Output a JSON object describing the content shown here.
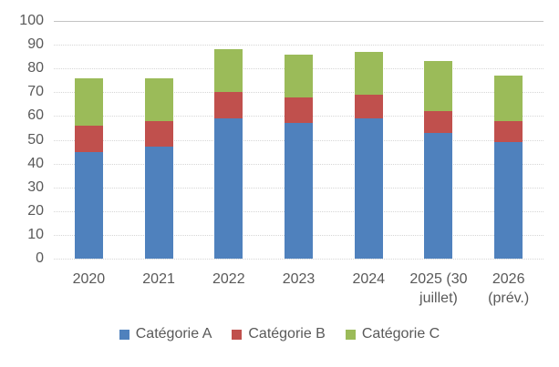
{
  "chart_data": {
    "type": "bar",
    "stacked": true,
    "title": "",
    "xlabel": "",
    "ylabel": "",
    "categories": [
      {
        "label": "2020",
        "lines": [
          "2020"
        ]
      },
      {
        "label": "2021",
        "lines": [
          "2021"
        ]
      },
      {
        "label": "2022",
        "lines": [
          "2022"
        ]
      },
      {
        "label": "2023",
        "lines": [
          "2023"
        ]
      },
      {
        "label": "2024",
        "lines": [
          "2024"
        ]
      },
      {
        "label": "2025 (30 juillet)",
        "lines": [
          "2025 (30",
          "juillet)"
        ]
      },
      {
        "label": "2026 (prév.)",
        "lines": [
          "2026",
          "(prév.)"
        ]
      }
    ],
    "series": [
      {
        "name": "Catégorie A",
        "color": "#4F81BD",
        "values": [
          45,
          47,
          59,
          57,
          59,
          53,
          49
        ]
      },
      {
        "name": "Catégorie B",
        "color": "#C0504D",
        "values": [
          11,
          11,
          11,
          11,
          10,
          9,
          9
        ]
      },
      {
        "name": "Catégorie C",
        "color": "#9BBB59",
        "values": [
          20,
          18,
          18,
          18,
          18,
          21,
          19
        ]
      }
    ],
    "stack_totals": [
      76,
      76,
      88,
      86,
      87,
      83,
      77
    ],
    "ylim": [
      0,
      100
    ],
    "yticks": [
      0,
      10,
      20,
      30,
      40,
      50,
      60,
      70,
      80,
      90,
      100
    ],
    "grid": true,
    "gridline_color": "#D6D6D6",
    "axis_text_color": "#595959",
    "legend_position": "bottom"
  }
}
